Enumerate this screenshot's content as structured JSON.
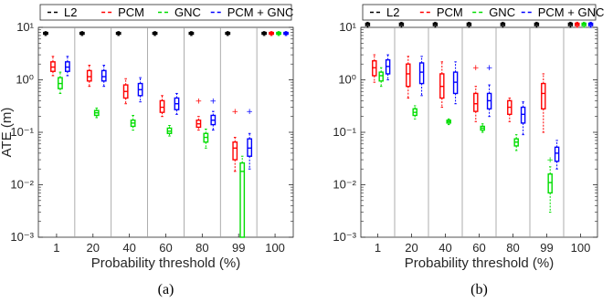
{
  "chart_data": [
    {
      "type": "box",
      "panel_label": "(a)",
      "xlabel": "Probability threshold (%)",
      "ylabel": "ATE (m)",
      "yscale": "log",
      "ylim": [
        0.001,
        10
      ],
      "yticks": [
        "10^-3",
        "10^-2",
        "10^-1",
        "10^0",
        "10^1"
      ],
      "categories": [
        "1",
        "20",
        "40",
        "60",
        "80",
        "99",
        "100"
      ],
      "legend": {
        "position": "top",
        "entries": [
          "L2",
          "PCM",
          "GNC",
          "PCM + GNC"
        ]
      },
      "series": [
        {
          "name": "L2",
          "color": "#000000",
          "boxes": [
            {
              "min": 7.0,
              "q1": 7.4,
              "median": 7.7,
              "q3": 8.0,
              "max": 8.3,
              "outliers": []
            },
            {
              "min": 7.0,
              "q1": 7.4,
              "median": 7.7,
              "q3": 8.0,
              "max": 8.3,
              "outliers": []
            },
            {
              "min": 7.0,
              "q1": 7.4,
              "median": 7.7,
              "q3": 8.0,
              "max": 8.3,
              "outliers": []
            },
            {
              "min": 7.0,
              "q1": 7.4,
              "median": 7.7,
              "q3": 8.0,
              "max": 8.3,
              "outliers": []
            },
            {
              "min": 7.0,
              "q1": 7.4,
              "median": 7.7,
              "q3": 8.0,
              "max": 8.3,
              "outliers": []
            },
            {
              "min": 7.0,
              "q1": 7.4,
              "median": 7.7,
              "q3": 8.0,
              "max": 8.3,
              "outliers": []
            },
            {
              "min": 7.0,
              "q1": 7.4,
              "median": 7.7,
              "q3": 8.0,
              "max": 8.3,
              "outliers": []
            }
          ]
        },
        {
          "name": "PCM",
          "color": "#ff0000",
          "boxes": [
            {
              "min": 1.2,
              "q1": 1.45,
              "median": 1.75,
              "q3": 2.2,
              "max": 2.8,
              "outliers": []
            },
            {
              "min": 0.75,
              "q1": 0.95,
              "median": 1.15,
              "q3": 1.5,
              "max": 1.9,
              "outliers": []
            },
            {
              "min": 0.35,
              "q1": 0.45,
              "median": 0.6,
              "q3": 0.8,
              "max": 1.05,
              "outliers": []
            },
            {
              "min": 0.2,
              "q1": 0.24,
              "median": 0.3,
              "q3": 0.4,
              "max": 0.5,
              "outliers": []
            },
            {
              "min": 0.11,
              "q1": 0.125,
              "median": 0.145,
              "q3": 0.17,
              "max": 0.2,
              "outliers": [
                0.4
              ]
            },
            {
              "min": 0.018,
              "q1": 0.03,
              "median": 0.05,
              "q3": 0.065,
              "max": 0.08,
              "outliers": [
                0.25
              ]
            },
            {
              "min": 7.0,
              "q1": 7.4,
              "median": 7.7,
              "q3": 8.0,
              "max": 8.3,
              "outliers": []
            }
          ]
        },
        {
          "name": "GNC",
          "color": "#00dd00",
          "boxes": [
            {
              "min": 0.55,
              "q1": 0.68,
              "median": 0.85,
              "q3": 1.1,
              "max": 1.4,
              "outliers": []
            },
            {
              "min": 0.19,
              "q1": 0.21,
              "median": 0.235,
              "q3": 0.26,
              "max": 0.29,
              "outliers": []
            },
            {
              "min": 0.11,
              "q1": 0.13,
              "median": 0.15,
              "q3": 0.17,
              "max": 0.21,
              "outliers": []
            },
            {
              "min": 0.085,
              "q1": 0.095,
              "median": 0.105,
              "q3": 0.12,
              "max": 0.135,
              "outliers": []
            },
            {
              "min": 0.05,
              "q1": 0.065,
              "median": 0.08,
              "q3": 0.095,
              "max": 0.115,
              "outliers": []
            },
            {
              "min": 0.001,
              "q1": 0.001,
              "median": 0.018,
              "q3": 0.026,
              "max": 0.035,
              "outliers": []
            },
            {
              "min": 7.0,
              "q1": 7.4,
              "median": 7.7,
              "q3": 8.0,
              "max": 8.3,
              "outliers": []
            }
          ]
        },
        {
          "name": "PCM + GNC",
          "color": "#0000ff",
          "boxes": [
            {
              "min": 1.2,
              "q1": 1.45,
              "median": 1.75,
              "q3": 2.2,
              "max": 2.8,
              "outliers": []
            },
            {
              "min": 0.75,
              "q1": 0.95,
              "median": 1.15,
              "q3": 1.5,
              "max": 1.9,
              "outliers": []
            },
            {
              "min": 0.38,
              "q1": 0.5,
              "median": 0.65,
              "q3": 0.85,
              "max": 1.1,
              "outliers": []
            },
            {
              "min": 0.22,
              "q1": 0.27,
              "median": 0.35,
              "q3": 0.45,
              "max": 0.55,
              "outliers": []
            },
            {
              "min": 0.11,
              "q1": 0.14,
              "median": 0.17,
              "q3": 0.21,
              "max": 0.25,
              "outliers": [
                0.4
              ]
            },
            {
              "min": 0.02,
              "q1": 0.035,
              "median": 0.05,
              "q3": 0.075,
              "max": 0.095,
              "outliers": [
                0.25
              ]
            },
            {
              "min": 7.0,
              "q1": 7.4,
              "median": 7.7,
              "q3": 8.0,
              "max": 8.3,
              "outliers": []
            }
          ]
        }
      ]
    },
    {
      "type": "box",
      "panel_label": "(b)",
      "xlabel": "Probability threshold (%)",
      "ylabel": "",
      "yscale": "log",
      "ylim": [
        0.001,
        10
      ],
      "yticks": [
        "10^-3",
        "10^-2",
        "10^-1",
        "10^0",
        "10^1"
      ],
      "categories": [
        "1",
        "20",
        "40",
        "60",
        "80",
        "99",
        "100"
      ],
      "legend": {
        "position": "top",
        "entries": [
          "L2",
          "PCM",
          "GNC",
          "PCM + GNC"
        ]
      },
      "series": [
        {
          "name": "L2",
          "color": "#000000",
          "boxes": [
            {
              "min": 10.0,
              "q1": 10.8,
              "median": 11.5,
              "q3": 12.0,
              "max": 12.5,
              "outliers": []
            },
            {
              "min": 10.0,
              "q1": 10.8,
              "median": 11.5,
              "q3": 12.0,
              "max": 12.5,
              "outliers": []
            },
            {
              "min": 10.0,
              "q1": 10.8,
              "median": 11.5,
              "q3": 12.0,
              "max": 12.5,
              "outliers": []
            },
            {
              "min": 10.0,
              "q1": 10.8,
              "median": 11.5,
              "q3": 12.0,
              "max": 12.5,
              "outliers": []
            },
            {
              "min": 10.0,
              "q1": 10.8,
              "median": 11.5,
              "q3": 12.0,
              "max": 12.5,
              "outliers": []
            },
            {
              "min": 10.0,
              "q1": 10.8,
              "median": 11.5,
              "q3": 12.0,
              "max": 12.5,
              "outliers": []
            },
            {
              "min": 10.0,
              "q1": 10.8,
              "median": 11.5,
              "q3": 12.0,
              "max": 12.5,
              "outliers": []
            }
          ]
        },
        {
          "name": "PCM",
          "color": "#ff0000",
          "boxes": [
            {
              "min": 0.9,
              "q1": 1.2,
              "median": 1.7,
              "q3": 2.3,
              "max": 3.0,
              "outliers": []
            },
            {
              "min": 0.45,
              "q1": 0.75,
              "median": 1.3,
              "q3": 2.0,
              "max": 2.8,
              "outliers": []
            },
            {
              "min": 0.3,
              "q1": 0.45,
              "median": 0.75,
              "q3": 1.3,
              "max": 2.2,
              "outliers": []
            },
            {
              "min": 0.16,
              "q1": 0.25,
              "median": 0.35,
              "q3": 0.55,
              "max": 0.75,
              "outliers": [
                1.7
              ]
            },
            {
              "min": 0.16,
              "q1": 0.22,
              "median": 0.3,
              "q3": 0.4,
              "max": 0.45,
              "outliers": []
            },
            {
              "min": 0.1,
              "q1": 0.28,
              "median": 0.55,
              "q3": 0.85,
              "max": 1.3,
              "outliers": []
            },
            {
              "min": 10.0,
              "q1": 10.8,
              "median": 11.5,
              "q3": 12.0,
              "max": 12.5,
              "outliers": []
            }
          ]
        },
        {
          "name": "GNC",
          "color": "#00dd00",
          "boxes": [
            {
              "min": 0.75,
              "q1": 0.95,
              "median": 1.2,
              "q3": 1.4,
              "max": 1.7,
              "outliers": []
            },
            {
              "min": 0.18,
              "q1": 0.21,
              "median": 0.24,
              "q3": 0.28,
              "max": 0.32,
              "outliers": []
            },
            {
              "min": 0.14,
              "q1": 0.15,
              "median": 0.16,
              "q3": 0.17,
              "max": 0.18,
              "outliers": []
            },
            {
              "min": 0.1,
              "q1": 0.11,
              "median": 0.12,
              "q3": 0.13,
              "max": 0.145,
              "outliers": []
            },
            {
              "min": 0.045,
              "q1": 0.055,
              "median": 0.065,
              "q3": 0.075,
              "max": 0.09,
              "outliers": []
            },
            {
              "min": 0.003,
              "q1": 0.007,
              "median": 0.011,
              "q3": 0.016,
              "max": 0.022,
              "outliers": [
                0.03
              ]
            },
            {
              "min": 10.0,
              "q1": 10.8,
              "median": 11.5,
              "q3": 12.0,
              "max": 12.5,
              "outliers": []
            }
          ]
        },
        {
          "name": "PCM + GNC",
          "color": "#0000ff",
          "boxes": [
            {
              "min": 1.0,
              "q1": 1.3,
              "median": 1.8,
              "q3": 2.4,
              "max": 3.0,
              "outliers": []
            },
            {
              "min": 0.5,
              "q1": 0.85,
              "median": 1.4,
              "q3": 2.1,
              "max": 2.8,
              "outliers": []
            },
            {
              "min": 0.35,
              "q1": 0.55,
              "median": 0.9,
              "q3": 1.4,
              "max": 2.2,
              "outliers": []
            },
            {
              "min": 0.2,
              "q1": 0.28,
              "median": 0.4,
              "q3": 0.55,
              "max": 0.8,
              "outliers": [
                1.7
              ]
            },
            {
              "min": 0.09,
              "q1": 0.15,
              "median": 0.22,
              "q3": 0.3,
              "max": 0.38,
              "outliers": []
            },
            {
              "min": 0.02,
              "q1": 0.028,
              "median": 0.04,
              "q3": 0.052,
              "max": 0.07,
              "outliers": []
            },
            {
              "min": 10.0,
              "q1": 10.8,
              "median": 11.5,
              "q3": 12.0,
              "max": 12.5,
              "outliers": []
            }
          ]
        }
      ]
    }
  ]
}
